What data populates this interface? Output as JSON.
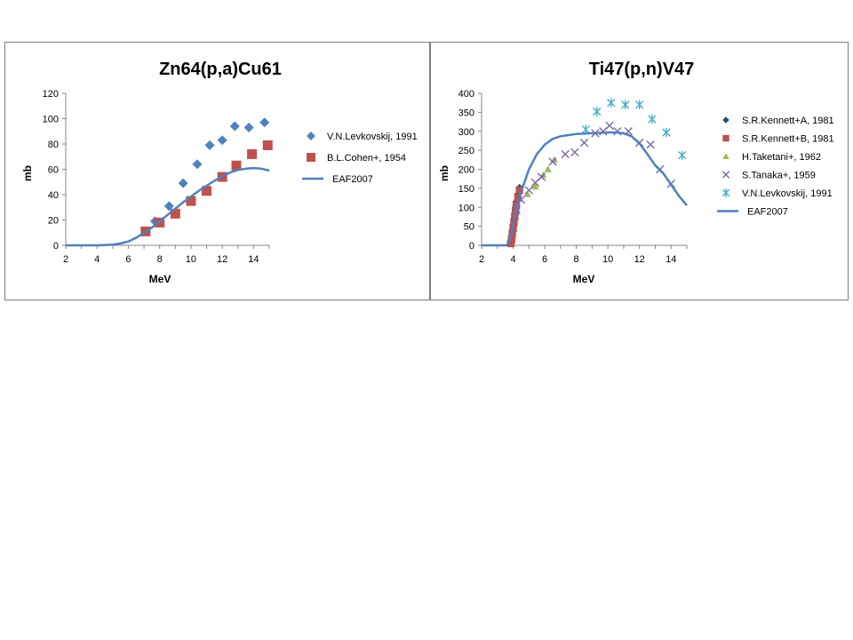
{
  "chart_data": [
    {
      "type": "scatter",
      "title": "Zn64(p,a)Cu61",
      "xlabel": "MeV",
      "ylabel": "mb",
      "xlim": [
        2,
        15
      ],
      "ylim": [
        0,
        120
      ],
      "xticks": [
        "2",
        "4",
        "6",
        "8",
        "10",
        "12",
        "14"
      ],
      "yticks": [
        "0",
        "20",
        "40",
        "60",
        "80",
        "100",
        "120"
      ],
      "grid": false,
      "legend": "right",
      "series": [
        {
          "name": "V.N.Levkovskij, 1991",
          "marker": "diamond",
          "color": "#4f81bd",
          "x": [
            7.7,
            8.6,
            9.5,
            10.4,
            11.2,
            12.0,
            12.8,
            13.7,
            14.7
          ],
          "y": [
            19,
            31,
            49,
            64,
            79,
            83,
            94,
            93,
            97
          ]
        },
        {
          "name": "B.L.Cohen+, 1954",
          "marker": "square",
          "color": "#c0504d",
          "x": [
            7.1,
            8.0,
            9.0,
            10.0,
            11.0,
            12.0,
            12.9,
            13.9,
            14.9
          ],
          "y": [
            11,
            18,
            25,
            35,
            43,
            54,
            63,
            72,
            79
          ]
        },
        {
          "name": "EAF2007",
          "marker": "line",
          "color": "#4f81bd",
          "x": [
            2,
            3,
            4,
            5,
            5.5,
            6,
            6.5,
            7,
            7.5,
            8,
            8.5,
            9,
            9.5,
            10,
            10.5,
            11,
            11.5,
            12,
            12.5,
            13,
            13.5,
            14,
            14.5,
            15
          ],
          "y": [
            0,
            0,
            0,
            0.5,
            1.5,
            3,
            6,
            10,
            14,
            19,
            24,
            29,
            34,
            38.5,
            43,
            47,
            51,
            54.5,
            57.5,
            59.5,
            60.5,
            61,
            60.5,
            59
          ]
        }
      ]
    },
    {
      "type": "scatter",
      "title": "Ti47(p,n)V47",
      "xlabel": "MeV",
      "ylabel": "mb",
      "xlim": [
        2,
        15
      ],
      "ylim": [
        0,
        400
      ],
      "xticks": [
        "2",
        "4",
        "6",
        "8",
        "10",
        "12",
        "14"
      ],
      "yticks": [
        "0",
        "50",
        "100",
        "150",
        "200",
        "250",
        "300",
        "350",
        "400"
      ],
      "grid": false,
      "legend": "right",
      "series": [
        {
          "name": "S.R.Kennett+A, 1981",
          "marker": "diamond",
          "color": "#1f497d",
          "x": [
            3.85,
            3.9,
            3.95,
            4.0,
            4.05,
            4.1,
            4.15,
            4.2,
            4.3,
            4.4
          ],
          "y": [
            10,
            25,
            40,
            55,
            70,
            85,
            100,
            115,
            135,
            152
          ]
        },
        {
          "name": "S.R.Kennett+B, 1981",
          "marker": "square",
          "color": "#c0504d",
          "x": [
            3.85,
            3.9,
            3.95,
            4.0,
            4.05,
            4.1,
            4.15,
            4.2,
            4.3,
            4.4
          ],
          "y": [
            5,
            15,
            30,
            45,
            60,
            75,
            90,
            105,
            125,
            145
          ]
        },
        {
          "name": "H.Taketani+, 1962",
          "marker": "triangle",
          "color": "#9bbb59",
          "x": [
            4.9,
            5.4,
            5.9,
            6.2,
            6.6
          ],
          "y": [
            135,
            155,
            185,
            200,
            225
          ]
        },
        {
          "name": "S.Tanaka+, 1959",
          "marker": "x",
          "color": "#8064a2",
          "x": [
            4.2,
            4.5,
            5.0,
            5.4,
            5.8,
            6.5,
            7.3,
            7.9,
            8.5,
            9.2,
            9.7,
            10.1,
            10.6,
            11.3,
            12.0,
            12.7,
            13.3,
            14.0
          ],
          "y": [
            95,
            120,
            145,
            165,
            180,
            220,
            240,
            245,
            270,
            295,
            300,
            315,
            300,
            300,
            270,
            265,
            200,
            162
          ]
        },
        {
          "name": "V.N.Levkovskij, 1991",
          "marker": "asterisk",
          "color": "#4bacc6",
          "x": [
            8.6,
            9.3,
            10.2,
            11.1,
            12.0,
            12.8,
            13.7,
            14.7
          ],
          "y": [
            305,
            352,
            375,
            370,
            370,
            332,
            297,
            237
          ]
        },
        {
          "name": "EAF2007",
          "marker": "line",
          "color": "#4f81bd",
          "x": [
            2,
            3,
            3.6,
            3.8,
            4.0,
            4.2,
            4.5,
            5.0,
            5.5,
            6.0,
            6.5,
            7.0,
            7.5,
            8.0,
            9.0,
            10.0,
            10.5,
            11.0,
            11.5,
            12.0,
            12.5,
            13.0,
            13.5,
            14.0,
            14.5,
            15.0
          ],
          "y": [
            0,
            0,
            0,
            15,
            55,
            95,
            140,
            200,
            240,
            265,
            280,
            287,
            290,
            293,
            295,
            297,
            297,
            295,
            287,
            268,
            240,
            210,
            190,
            160,
            130,
            105
          ]
        }
      ]
    }
  ]
}
